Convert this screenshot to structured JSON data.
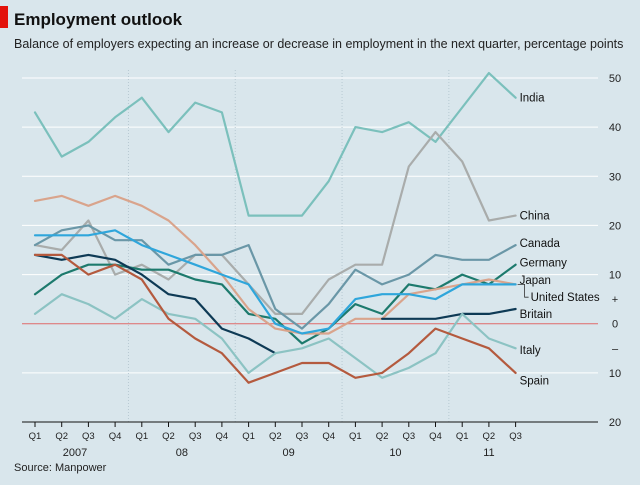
{
  "chart_data": {
    "type": "line",
    "title": "Employment outlook",
    "subtitle": "Balance of employers expecting an increase or decrease in employment in the next quarter, percentage points",
    "source": "Source: Manpower",
    "categories": [
      "Q1",
      "Q2",
      "Q3",
      "Q4",
      "Q1",
      "Q2",
      "Q3",
      "Q4",
      "Q1",
      "Q2",
      "Q3",
      "Q4",
      "Q1",
      "Q2",
      "Q3",
      "Q4",
      "Q1",
      "Q2",
      "Q3"
    ],
    "year_labels": [
      {
        "label": "2007",
        "start": 0,
        "end": 3
      },
      {
        "label": "08",
        "start": 4,
        "end": 7
      },
      {
        "label": "09",
        "start": 8,
        "end": 11
      },
      {
        "label": "10",
        "start": 12,
        "end": 15
      },
      {
        "label": "11",
        "start": 16,
        "end": 18
      }
    ],
    "ylim": [
      -20,
      50
    ],
    "yticks": [
      {
        "value": 50,
        "label": "50"
      },
      {
        "value": 40,
        "label": "40"
      },
      {
        "value": 30,
        "label": "30"
      },
      {
        "value": 20,
        "label": "20"
      },
      {
        "value": 10,
        "label": "10"
      },
      {
        "value": 5,
        "label": "+"
      },
      {
        "value": 0,
        "label": "0"
      },
      {
        "value": -5,
        "label": "–"
      },
      {
        "value": -10,
        "label": "10"
      },
      {
        "value": -20,
        "label": "20"
      }
    ],
    "series": [
      {
        "name": "India",
        "color": "#7bc0bc",
        "width": 2.2,
        "x_start": 0,
        "values": [
          43,
          34,
          37,
          42,
          46,
          39,
          45,
          43,
          22,
          22,
          22,
          29,
          40,
          39,
          41,
          37,
          44,
          51,
          46
        ]
      },
      {
        "name": "China",
        "color": "#a9acab",
        "width": 2.2,
        "x_start": 0,
        "values": [
          16,
          15,
          21,
          10,
          12,
          9,
          14,
          14,
          8,
          2,
          2,
          9,
          12,
          12,
          32,
          39,
          33,
          21,
          22
        ]
      },
      {
        "name": "Canada",
        "color": "#6a97a7",
        "width": 2.2,
        "x_start": 0,
        "values": [
          16,
          19,
          20,
          17,
          17,
          12,
          14,
          14,
          16,
          3,
          -1,
          4,
          11,
          8,
          10,
          14,
          13,
          13,
          16
        ]
      },
      {
        "name": "Germany",
        "color": "#1d7a6d",
        "width": 2.2,
        "x_start": 0,
        "values": [
          6,
          10,
          12,
          12,
          11,
          11,
          9,
          8,
          2,
          1,
          -4,
          -1,
          4,
          2,
          8,
          7,
          10,
          8,
          12
        ]
      },
      {
        "name": "Japan",
        "color": "#d9a48c",
        "width": 2.2,
        "x_start": 0,
        "values": [
          25,
          26,
          24,
          26,
          24,
          21,
          16,
          10,
          3,
          -1,
          -2,
          -2,
          1,
          1,
          6,
          7,
          8,
          9,
          8
        ]
      },
      {
        "name": "United States",
        "color": "#2fa6db",
        "width": 2.2,
        "x_start": 0,
        "values": [
          18,
          18,
          18,
          19,
          16,
          14,
          12,
          10,
          8,
          0,
          -2,
          -1,
          5,
          6,
          6,
          5,
          8,
          8,
          8
        ]
      },
      {
        "name": "Britain",
        "color": "#0e3a55",
        "width": 2.2,
        "x_start": 0,
        "values": [
          14,
          13,
          14,
          13,
          10,
          6,
          5,
          -1,
          -3,
          -6,
          null,
          null,
          null,
          1,
          1,
          1,
          2,
          2,
          3
        ]
      },
      {
        "name": "Italy",
        "color": "#8cc3c3",
        "width": 2.2,
        "x_start": 0,
        "values": [
          2,
          6,
          4,
          1,
          5,
          2,
          1,
          -3,
          -10,
          -6,
          -5,
          -3,
          -7,
          -11,
          -9,
          -6,
          2,
          -3,
          -5
        ]
      },
      {
        "name": "Spain",
        "color": "#b45a3e",
        "width": 2.2,
        "x_start": 0,
        "values": [
          14,
          14,
          10,
          12,
          9,
          1,
          -3,
          -6,
          -12,
          -10,
          -8,
          -8,
          -11,
          -10,
          -6,
          -1,
          -3,
          -5,
          -10
        ]
      }
    ],
    "labels": [
      {
        "name": "India",
        "text": "India",
        "y": 46
      },
      {
        "name": "China",
        "text": "China",
        "y": 22
      },
      {
        "name": "Canada",
        "text": "Canada",
        "y": 16.4
      },
      {
        "name": "Germany",
        "text": "Germany",
        "y": 12.5
      },
      {
        "name": "Japan",
        "text": "Japan",
        "y": 8.9
      },
      {
        "name": "United States",
        "text": "United States",
        "y": 5.4
      },
      {
        "name": "Britain",
        "text": "Britain",
        "y": 2.0
      },
      {
        "name": "Italy",
        "text": "Italy",
        "y": -5.3
      },
      {
        "name": "Spain",
        "text": "Spain",
        "y": -11.6
      }
    ],
    "zero_line_color": "#e06a6a",
    "xlabel": "",
    "ylabel": "percentage points"
  }
}
